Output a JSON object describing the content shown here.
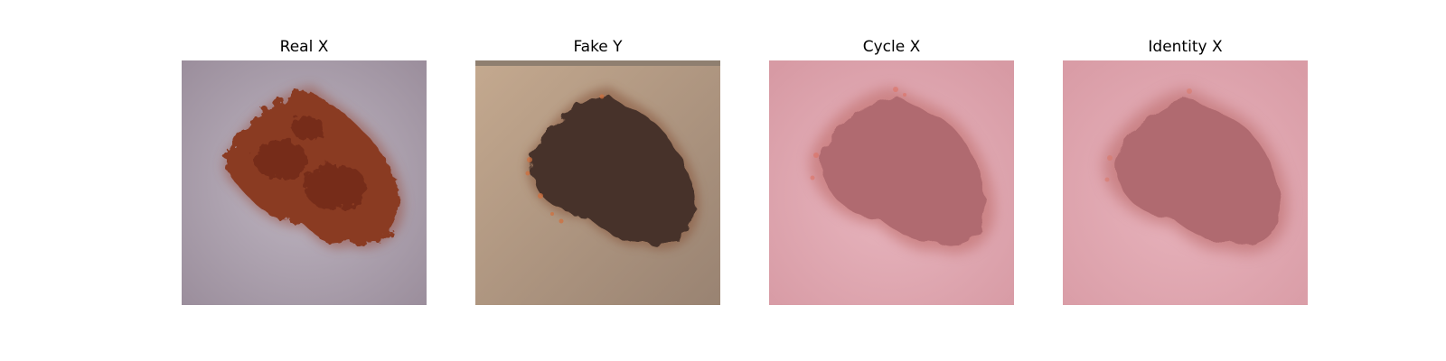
{
  "panels": [
    {
      "title": "Real X",
      "background": "#a69aa6",
      "lesion": "#8a3a22",
      "edge": "#a7532f"
    },
    {
      "title": "Fake Y",
      "background": "#b39a85",
      "lesion": "#463229",
      "edge": "#c0653d"
    },
    {
      "title": "Cycle X",
      "background": "#dca2ab",
      "lesion": "#b06b70",
      "edge": "#d8705e"
    },
    {
      "title": "Identity X",
      "background": "#dca2ab",
      "lesion": "#b06b70",
      "edge": "#d27464"
    }
  ]
}
